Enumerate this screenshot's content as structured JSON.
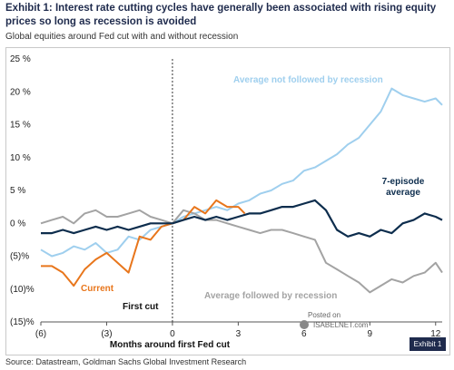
{
  "header": {
    "title": "Exhibit 1: Interest rate cutting cycles have generally been associated with rising equity prices so long as recession is avoided",
    "subtitle": "Global equities around Fed cut with and without recession"
  },
  "footer": {
    "source": "Source: Datastream, Goldman Sachs Global Investment Research",
    "exhibit_tag": "Exhibit 1",
    "watermark_top": "Posted on",
    "watermark_bottom": "ISABELNET.com"
  },
  "chart_data": {
    "type": "line",
    "xlabel": "Months around first Fed cut",
    "xlim": [
      -6,
      12.3
    ],
    "ylim": [
      -15,
      25
    ],
    "x_ticks": [
      -6,
      -3,
      0,
      3,
      6,
      9,
      12
    ],
    "x_tick_labels": [
      "(6)",
      "(3)",
      "0",
      "3",
      "6",
      "9",
      "12"
    ],
    "y_ticks": [
      25,
      20,
      15,
      10,
      5,
      0,
      -5,
      -10,
      -15
    ],
    "y_tick_labels": [
      "25 %",
      "20 %",
      "15 %",
      "10 %",
      "5 %",
      "0 %",
      "(5)%",
      "(10)%",
      "(15)%"
    ],
    "grid": false,
    "vline": {
      "x": 0,
      "label": "First cut"
    },
    "colors": {
      "not_recession": "#9fcfee",
      "recession": "#a3a3a3",
      "current": "#e8761c",
      "average": "#0d2d4d"
    },
    "series": [
      {
        "name": "Average not followed by recession",
        "x": [
          -6,
          -5.5,
          -5,
          -4.5,
          -4,
          -3.5,
          -3,
          -2.5,
          -2,
          -1.5,
          -1,
          -0.5,
          0,
          0.5,
          1,
          1.5,
          2,
          2.5,
          3,
          3.5,
          4,
          4.5,
          5,
          5.5,
          6,
          6.5,
          7,
          7.5,
          8,
          8.5,
          9,
          9.5,
          10,
          10.5,
          11,
          11.5,
          12,
          12.3
        ],
        "values": [
          -4,
          -5,
          -4.5,
          -3.5,
          -4,
          -3,
          -4.5,
          -4,
          -2,
          -2.5,
          -1,
          -0.5,
          0,
          1,
          1.5,
          2,
          2.5,
          2,
          3,
          3.5,
          4.5,
          5,
          6,
          6.5,
          8,
          8.5,
          9.5,
          10.5,
          12,
          13,
          15,
          17,
          20.5,
          19.5,
          19,
          18.5,
          19,
          18
        ]
      },
      {
        "name": "Average followed by recession",
        "x": [
          -6,
          -5.5,
          -5,
          -4.5,
          -4,
          -3.5,
          -3,
          -2.5,
          -2,
          -1.5,
          -1,
          -0.5,
          0,
          0.5,
          1,
          1.5,
          2,
          2.5,
          3,
          3.5,
          4,
          4.5,
          5,
          5.5,
          6,
          6.5,
          7,
          7.5,
          8,
          8.5,
          9,
          9.5,
          10,
          10.5,
          11,
          11.5,
          12,
          12.3
        ],
        "values": [
          0,
          0.5,
          1,
          0,
          1.5,
          2,
          1,
          1,
          1.5,
          2,
          1,
          0.5,
          0,
          2,
          1.5,
          0.5,
          0.5,
          0,
          -0.5,
          -1,
          -1.5,
          -1,
          -1,
          -1.5,
          -2,
          -2.5,
          -6,
          -7,
          -8,
          -9,
          -10.5,
          -9.5,
          -8.5,
          -9,
          -8,
          -7.5,
          -6,
          -7.5
        ]
      },
      {
        "name": "Current",
        "x": [
          -6,
          -5.5,
          -5,
          -4.5,
          -4,
          -3.5,
          -3,
          -2.5,
          -2,
          -1.5,
          -1,
          -0.5,
          0,
          0.5,
          1,
          1.5,
          2,
          2.5,
          3,
          3.3
        ],
        "values": [
          -6.5,
          -6.5,
          -7.5,
          -9.5,
          -7,
          -5.5,
          -4.5,
          -6,
          -7.5,
          -2,
          -2.5,
          -0.5,
          0,
          0.5,
          2.5,
          1.5,
          3.5,
          2.5,
          2.5,
          1.5
        ]
      },
      {
        "name": "7-episode average",
        "x": [
          -6,
          -5.5,
          -5,
          -4.5,
          -4,
          -3.5,
          -3,
          -2.5,
          -2,
          -1.5,
          -1,
          -0.5,
          0,
          0.5,
          1,
          1.5,
          2,
          2.5,
          3,
          3.5,
          4,
          4.5,
          5,
          5.5,
          6,
          6.5,
          7,
          7.5,
          8,
          8.5,
          9,
          9.5,
          10,
          10.5,
          11,
          11.5,
          12,
          12.3
        ],
        "values": [
          -1.5,
          -1.5,
          -1,
          -1.5,
          -1,
          -0.5,
          -1,
          -0.5,
          -1,
          -0.5,
          0,
          0,
          0,
          0.5,
          1,
          0.5,
          1,
          0.5,
          1,
          1.5,
          1.5,
          2,
          2.5,
          2.5,
          3,
          3.5,
          2,
          -1,
          -2,
          -1.5,
          -2,
          -1,
          -1.5,
          0,
          0.5,
          1.5,
          1,
          0.5
        ]
      }
    ],
    "labels": {
      "not_recession": "Average not followed by recession",
      "recession": "Average followed by recession",
      "current": "Current",
      "average_line1": "7-episode",
      "average_line2": "average"
    }
  }
}
